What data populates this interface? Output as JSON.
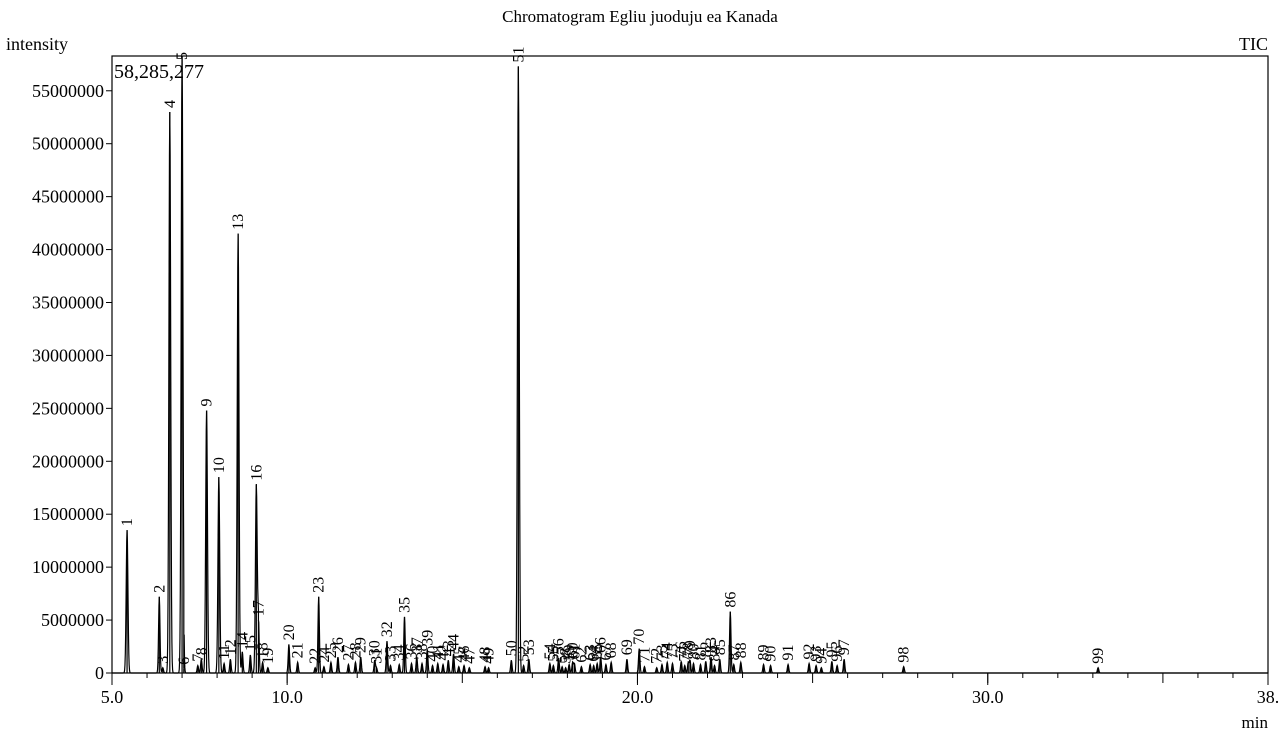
{
  "chart_data": {
    "type": "line",
    "title": "Chromatogram Egliu juoduju ea Kanada",
    "ylabel": "intensity",
    "xlabel": "min",
    "trace_label": "TIC",
    "top_readout": "58,285,277",
    "xlim": [
      5.0,
      38.0
    ],
    "ylim": [
      0,
      58285277
    ],
    "x_ticks": [
      {
        "value": 5.0,
        "label": "5.0"
      },
      {
        "value": 10.0,
        "label": "10.0"
      },
      {
        "value": 20.0,
        "label": "20.0"
      },
      {
        "value": 30.0,
        "label": "30.0"
      },
      {
        "value": 38.0,
        "label": "38."
      }
    ],
    "y_ticks": [
      0,
      5000000,
      10000000,
      15000000,
      20000000,
      25000000,
      30000000,
      35000000,
      40000000,
      45000000,
      50000000,
      55000000
    ],
    "grid": false,
    "peaks": [
      {
        "id": "1",
        "rt": 5.43,
        "height": 13500000
      },
      {
        "id": "2",
        "rt": 6.35,
        "height": 7200000
      },
      {
        "id": "3",
        "rt": 6.45,
        "height": 500000
      },
      {
        "id": "4",
        "rt": 6.65,
        "height": 53000000
      },
      {
        "id": "5",
        "rt": 7.0,
        "height": 58285277
      },
      {
        "id": "6",
        "rt": 7.05,
        "height": 400000
      },
      {
        "id": "7",
        "rt": 7.45,
        "height": 700000
      },
      {
        "id": "8",
        "rt": 7.55,
        "height": 1300000
      },
      {
        "id": "9",
        "rt": 7.7,
        "height": 24800000
      },
      {
        "id": "10",
        "rt": 8.05,
        "height": 18500000
      },
      {
        "id": "11",
        "rt": 8.2,
        "height": 900000
      },
      {
        "id": "12",
        "rt": 8.38,
        "height": 1300000
      },
      {
        "id": "13",
        "rt": 8.6,
        "height": 41500000
      },
      {
        "id": "14",
        "rt": 8.72,
        "height": 2000000
      },
      {
        "id": "15",
        "rt": 8.95,
        "height": 1700000
      },
      {
        "id": "16",
        "rt": 9.12,
        "height": 17800000
      },
      {
        "id": "17",
        "rt": 9.18,
        "height": 5000000
      },
      {
        "id": "18",
        "rt": 9.3,
        "height": 1000000
      },
      {
        "id": "19",
        "rt": 9.45,
        "height": 500000
      },
      {
        "id": "20",
        "rt": 10.05,
        "height": 2700000
      },
      {
        "id": "21",
        "rt": 10.3,
        "height": 1000000
      },
      {
        "id": "22",
        "rt": 10.8,
        "height": 500000
      },
      {
        "id": "23",
        "rt": 10.9,
        "height": 7200000
      },
      {
        "id": "24",
        "rt": 11.05,
        "height": 600000
      },
      {
        "id": "25",
        "rt": 11.25,
        "height": 1000000
      },
      {
        "id": "26",
        "rt": 11.45,
        "height": 1500000
      },
      {
        "id": "27",
        "rt": 11.75,
        "height": 800000
      },
      {
        "id": "28",
        "rt": 11.95,
        "height": 1000000
      },
      {
        "id": "29",
        "rt": 12.1,
        "height": 1500000
      },
      {
        "id": "30",
        "rt": 12.5,
        "height": 1200000
      },
      {
        "id": "31",
        "rt": 12.55,
        "height": 500000
      },
      {
        "id": "32",
        "rt": 12.85,
        "height": 3000000
      },
      {
        "id": "33",
        "rt": 12.95,
        "height": 700000
      },
      {
        "id": "34",
        "rt": 13.2,
        "height": 800000
      },
      {
        "id": "35",
        "rt": 13.35,
        "height": 5300000
      },
      {
        "id": "36",
        "rt": 13.55,
        "height": 900000
      },
      {
        "id": "37",
        "rt": 13.7,
        "height": 1500000
      },
      {
        "id": "38",
        "rt": 13.85,
        "height": 900000
      },
      {
        "id": "39",
        "rt": 14.0,
        "height": 2200000
      },
      {
        "id": "40",
        "rt": 14.15,
        "height": 700000
      },
      {
        "id": "41",
        "rt": 14.3,
        "height": 900000
      },
      {
        "id": "42",
        "rt": 14.45,
        "height": 800000
      },
      {
        "id": "43",
        "rt": 14.6,
        "height": 1200000
      },
      {
        "id": "44",
        "rt": 14.75,
        "height": 1800000
      },
      {
        "id": "45",
        "rt": 14.9,
        "height": 600000
      },
      {
        "id": "46",
        "rt": 15.05,
        "height": 700000
      },
      {
        "id": "47",
        "rt": 15.2,
        "height": 500000
      },
      {
        "id": "48",
        "rt": 15.65,
        "height": 600000
      },
      {
        "id": "49",
        "rt": 15.75,
        "height": 500000
      },
      {
        "id": "50",
        "rt": 16.4,
        "height": 1200000
      },
      {
        "id": "51",
        "rt": 16.6,
        "height": 57300000
      },
      {
        "id": "52",
        "rt": 16.75,
        "height": 700000
      },
      {
        "id": "53",
        "rt": 16.9,
        "height": 1300000
      },
      {
        "id": "54",
        "rt": 17.5,
        "height": 900000
      },
      {
        "id": "55",
        "rt": 17.6,
        "height": 700000
      },
      {
        "id": "56",
        "rt": 17.75,
        "height": 1400000
      },
      {
        "id": "57",
        "rt": 17.85,
        "height": 600000
      },
      {
        "id": "58",
        "rt": 17.95,
        "height": 500000
      },
      {
        "id": "59",
        "rt": 18.05,
        "height": 800000
      },
      {
        "id": "60",
        "rt": 18.15,
        "height": 1000000
      },
      {
        "id": "61",
        "rt": 18.2,
        "height": 900000
      },
      {
        "id": "62",
        "rt": 18.4,
        "height": 600000
      },
      {
        "id": "63",
        "rt": 18.65,
        "height": 800000
      },
      {
        "id": "64",
        "rt": 18.75,
        "height": 700000
      },
      {
        "id": "65",
        "rt": 18.85,
        "height": 900000
      },
      {
        "id": "66",
        "rt": 18.95,
        "height": 1500000
      },
      {
        "id": "67",
        "rt": 19.1,
        "height": 800000
      },
      {
        "id": "68",
        "rt": 19.25,
        "height": 1000000
      },
      {
        "id": "69",
        "rt": 19.7,
        "height": 1300000
      },
      {
        "id": "70",
        "rt": 20.05,
        "height": 2300000
      },
      {
        "id": "71",
        "rt": 20.2,
        "height": 600000
      },
      {
        "id": "72",
        "rt": 20.55,
        "height": 500000
      },
      {
        "id": "73",
        "rt": 20.7,
        "height": 800000
      },
      {
        "id": "74",
        "rt": 20.85,
        "height": 1000000
      },
      {
        "id": "75",
        "rt": 21.0,
        "height": 900000
      },
      {
        "id": "76",
        "rt": 21.25,
        "height": 1100000
      },
      {
        "id": "77",
        "rt": 21.35,
        "height": 700000
      },
      {
        "id": "78",
        "rt": 21.45,
        "height": 1000000
      },
      {
        "id": "79",
        "rt": 21.5,
        "height": 1200000
      },
      {
        "id": "80",
        "rt": 21.6,
        "height": 900000
      },
      {
        "id": "81",
        "rt": 21.8,
        "height": 800000
      },
      {
        "id": "82",
        "rt": 21.95,
        "height": 1100000
      },
      {
        "id": "83",
        "rt": 22.1,
        "height": 1500000
      },
      {
        "id": "84",
        "rt": 22.2,
        "height": 700000
      },
      {
        "id": "85",
        "rt": 22.35,
        "height": 1300000
      },
      {
        "id": "86",
        "rt": 22.65,
        "height": 5800000
      },
      {
        "id": "87",
        "rt": 22.75,
        "height": 800000
      },
      {
        "id": "88",
        "rt": 22.95,
        "height": 1000000
      },
      {
        "id": "89",
        "rt": 23.6,
        "height": 800000
      },
      {
        "id": "90",
        "rt": 23.8,
        "height": 700000
      },
      {
        "id": "91",
        "rt": 24.3,
        "height": 800000
      },
      {
        "id": "92",
        "rt": 24.9,
        "height": 900000
      },
      {
        "id": "93",
        "rt": 25.1,
        "height": 700000
      },
      {
        "id": "94",
        "rt": 25.25,
        "height": 500000
      },
      {
        "id": "95",
        "rt": 25.55,
        "height": 1100000
      },
      {
        "id": "96",
        "rt": 25.7,
        "height": 700000
      },
      {
        "id": "97",
        "rt": 25.9,
        "height": 1300000
      },
      {
        "id": "98",
        "rt": 27.6,
        "height": 600000
      },
      {
        "id": "99",
        "rt": 33.15,
        "height": 500000
      }
    ]
  }
}
